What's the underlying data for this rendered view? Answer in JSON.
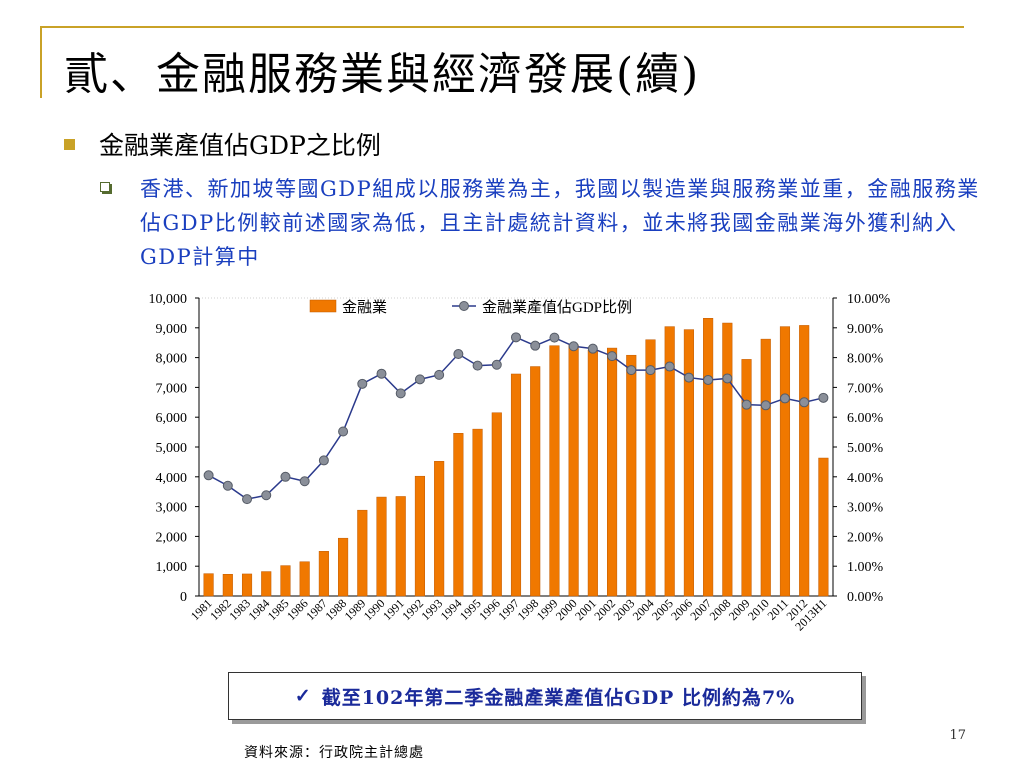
{
  "slide": {
    "title": "貳、金融服務業與經濟發展(續)",
    "bullet_main": "金融業產值佔GDP之比例",
    "bullet_sub": "香港、新加坡等國GDP組成以服務業為主，我國以製造業與服務業並重，金融服務業佔GDP比例較前述國家為低，且主計處統計資料，並未將我國金融業海外獲利納入GDP計算中",
    "note_check": "✓",
    "note": "截至102年第二季金融產業產值佔GDP 比例約為7%",
    "page_number": "17",
    "source": "資料來源：行政院主計總處"
  },
  "colors": {
    "accent_rule": "#c9a227",
    "bar_fill": "#f07800",
    "line": "#2b3a8c",
    "marker": "#8a8f99",
    "body_text_blue": "#1a3fbf"
  },
  "chart_data": {
    "type": "bar+line",
    "categories": [
      "1981",
      "1982",
      "1983",
      "1984",
      "1985",
      "1986",
      "1987",
      "1988",
      "1989",
      "1990",
      "1991",
      "1992",
      "1993",
      "1994",
      "1995",
      "1996",
      "1997",
      "1998",
      "1999",
      "2000",
      "2001",
      "2002",
      "2003",
      "2004",
      "2005",
      "2006",
      "2007",
      "2008",
      "2009",
      "2010",
      "2011",
      "2012",
      "2013H1"
    ],
    "series": [
      {
        "name": "金融業",
        "type": "bar",
        "axis": "left",
        "values": [
          750,
          730,
          740,
          820,
          1020,
          1150,
          1500,
          1940,
          2880,
          3320,
          3340,
          4020,
          4520,
          5460,
          5600,
          6150,
          7450,
          7700,
          8400,
          8420,
          8250,
          8320,
          8080,
          8600,
          9040,
          8940,
          9320,
          9160,
          7940,
          8620,
          9040,
          9080,
          4630
        ]
      },
      {
        "name": "金融業產值佔GDP比例",
        "type": "line",
        "axis": "right",
        "values": [
          4.05,
          3.7,
          3.25,
          3.38,
          4.0,
          3.85,
          4.55,
          5.52,
          7.12,
          7.46,
          6.8,
          7.27,
          7.42,
          8.12,
          7.73,
          7.76,
          8.68,
          8.4,
          8.67,
          8.38,
          8.3,
          8.05,
          7.58,
          7.58,
          7.7,
          7.33,
          7.25,
          7.3,
          6.42,
          6.4,
          6.63,
          6.5,
          6.65
        ]
      }
    ],
    "y_left": {
      "min": 0,
      "max": 10000,
      "ticks": [
        "0",
        "1,000",
        "2,000",
        "3,000",
        "4,000",
        "5,000",
        "6,000",
        "7,000",
        "8,000",
        "9,000",
        "10,000"
      ]
    },
    "y_right": {
      "min": 0,
      "max": 10,
      "ticks": [
        "0.00%",
        "1.00%",
        "2.00%",
        "3.00%",
        "4.00%",
        "5.00%",
        "6.00%",
        "7.00%",
        "8.00%",
        "9.00%",
        "10.00%"
      ]
    },
    "legend_position": "top-center",
    "grid": false
  }
}
